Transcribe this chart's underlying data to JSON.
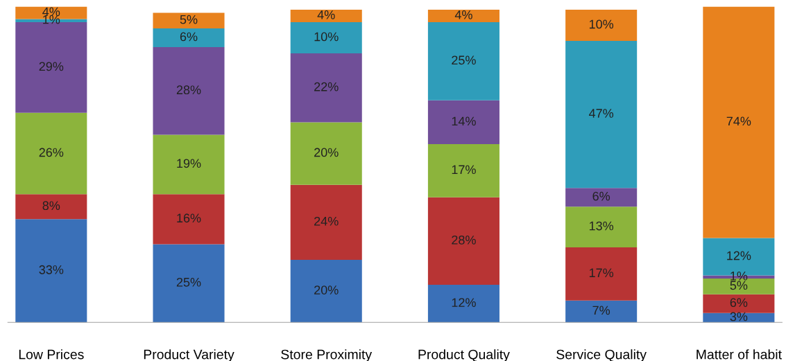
{
  "chart_data": {
    "type": "bar",
    "stacked": true,
    "categories": [
      "Low Prices",
      "Product Variety",
      "Store Proximity",
      "Product Quality",
      "Service Quality",
      "Matter of habit"
    ],
    "series": [
      {
        "color": "#3a70b8",
        "values": [
          33,
          25,
          20,
          12,
          7,
          3
        ],
        "value_labels": [
          "33%",
          "25%",
          "20%",
          "12%",
          "7%",
          "3%"
        ]
      },
      {
        "color": "#b83434",
        "values": [
          8,
          16,
          24,
          28,
          17,
          6
        ],
        "value_labels": [
          "8%",
          "16%",
          "24%",
          "28%",
          "17%",
          "6%"
        ]
      },
      {
        "color": "#8cb43c",
        "values": [
          26,
          19,
          20,
          17,
          13,
          5
        ],
        "value_labels": [
          "26%",
          "19%",
          "20%",
          "17%",
          "13%",
          "5%"
        ]
      },
      {
        "color": "#704f98",
        "values": [
          29,
          28,
          22,
          14,
          6,
          1
        ],
        "value_labels": [
          "29%",
          "28%",
          "22%",
          "14%",
          "6%",
          "1%"
        ]
      },
      {
        "color": "#2f9dba",
        "values": [
          1,
          6,
          10,
          25,
          47,
          12
        ],
        "value_labels": [
          "1%",
          "6%",
          "10%",
          "25%",
          "47%",
          "12%"
        ]
      },
      {
        "color": "#e8821e",
        "values": [
          4,
          5,
          4,
          4,
          10,
          74
        ],
        "value_labels": [
          "4%",
          "5%",
          "4%",
          "4%",
          "10%",
          "74%"
        ]
      }
    ],
    "grid": false,
    "legend": false
  }
}
